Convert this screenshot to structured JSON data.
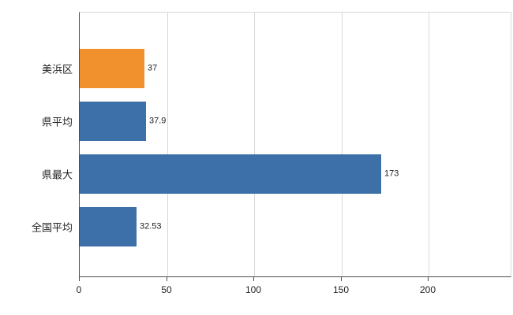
{
  "chart_data": {
    "type": "bar",
    "orientation": "horizontal",
    "title": "",
    "xlabel": "",
    "ylabel": "",
    "categories": [
      "美浜区",
      "県平均",
      "県最大",
      "全国平均"
    ],
    "values": [
      37,
      37.9,
      173,
      32.53
    ],
    "value_labels": [
      "37",
      "37.9",
      "173",
      "32.53"
    ],
    "bar_colors": [
      "#f0912d",
      "#3d6fa8",
      "#3d6fa8",
      "#3d6fa8"
    ],
    "x_ticks": [
      "0",
      "50",
      "100",
      "150",
      "200"
    ],
    "x_tick_values": [
      0,
      50,
      100,
      150,
      200
    ],
    "xlim": [
      0,
      248
    ],
    "grid": true,
    "legend": false,
    "colors": {
      "highlight_bar": "#f0912d",
      "default_bar": "#3d6fa8",
      "gridline": "#d9d9d9",
      "axis": "#4d4d4d",
      "text": "#222222",
      "background": "#ffffff"
    }
  }
}
